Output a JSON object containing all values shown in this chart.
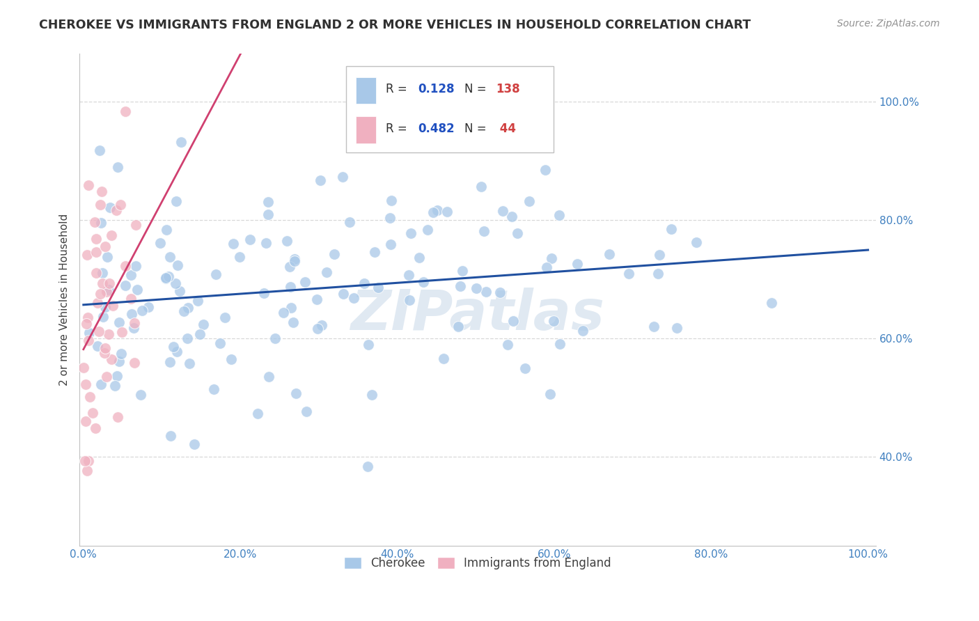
{
  "title": "CHEROKEE VS IMMIGRANTS FROM ENGLAND 2 OR MORE VEHICLES IN HOUSEHOLD CORRELATION CHART",
  "source": "Source: ZipAtlas.com",
  "ylabel": "2 or more Vehicles in Household",
  "xlabel": "",
  "xlim": [
    0.0,
    1.0
  ],
  "ylim": [
    0.25,
    1.08
  ],
  "xtick_vals": [
    0.0,
    0.2,
    0.4,
    0.6,
    0.8,
    1.0
  ],
  "xtick_labels": [
    "0.0%",
    "20.0%",
    "40.0%",
    "60.0%",
    "80.0%",
    "100.0%"
  ],
  "ytick_vals": [
    0.4,
    0.6,
    0.8,
    1.0
  ],
  "ytick_labels": [
    "40.0%",
    "60.0%",
    "80.0%",
    "100.0%"
  ],
  "r1": "0.128",
  "n1": "138",
  "r2": "0.482",
  "n2": "44",
  "blue_color": "#a8c8e8",
  "pink_color": "#f0b0c0",
  "blue_line_color": "#2050a0",
  "pink_line_color": "#d04070",
  "label1": "Cherokee",
  "label2": "Immigrants from England",
  "title_color": "#303030",
  "source_color": "#909090",
  "r_value_color": "#2050c0",
  "n_value_color": "#d04040",
  "grid_color": "#d8d8d8",
  "axis_label_color": "#4080c0",
  "watermark_color": "#c8d8e8"
}
